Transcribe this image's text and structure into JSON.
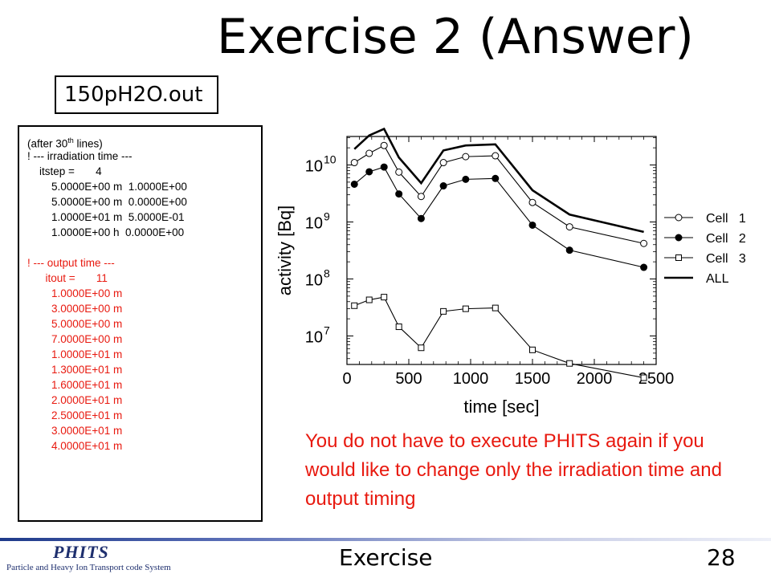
{
  "slide": {
    "title": "Exercise 2 (Answer)",
    "file_label": "150pH2O.out",
    "note": "You do not have to execute PHITS again if you would like to change only the irradiation time and output timing",
    "footer_section": "Exercise",
    "page_number": "28",
    "logo_main": "PHITS",
    "logo_sub": "Particle and Heavy Ion Transport code System"
  },
  "output": {
    "header_pre": "(after 30",
    "header_sup": "th",
    "header_post": " lines)",
    "irradiation_lines": [
      "! --- irradiation time ---",
      "    itstep =       4",
      "        5.0000E+00 m  1.0000E+00",
      "        5.0000E+00 m  0.0000E+00",
      "        1.0000E+01 m  5.0000E-01",
      "        1.0000E+00 h  0.0000E+00"
    ],
    "output_lines": [
      "! --- output time ---",
      "      itout =       11",
      "        1.0000E+00 m",
      "        3.0000E+00 m",
      "        5.0000E+00 m",
      "        7.0000E+00 m",
      "        1.0000E+01 m",
      "        1.3000E+01 m",
      "        1.6000E+01 m",
      "        2.0000E+01 m",
      "        2.5000E+01 m",
      "        3.0000E+01 m",
      "        4.0000E+01 m"
    ]
  },
  "colors": {
    "accent_red": "#e8190f",
    "logo_navy": "#1e2f6e"
  },
  "chart_data": {
    "type": "line",
    "xlabel": "time [sec]",
    "ylabel": "activity [Bq]",
    "xlim": [
      0,
      2500
    ],
    "ylim_log10": [
      6.5,
      10.5
    ],
    "y_scale": "log",
    "grid": false,
    "legend_position": "right",
    "x_ticks": [
      "0",
      "500",
      "1000",
      "1500",
      "2000",
      "2500"
    ],
    "x_tick_values": [
      0,
      500,
      1000,
      1500,
      2000,
      2500
    ],
    "y_ticks": [
      {
        "base": "10",
        "exp": "10",
        "value": 10000000000.0
      },
      {
        "base": "10",
        "exp": "9",
        "value": 1000000000.0
      },
      {
        "base": "10",
        "exp": "8",
        "value": 100000000.0
      },
      {
        "base": "10",
        "exp": "7",
        "value": 10000000.0
      }
    ],
    "x": [
      60,
      180,
      300,
      420,
      600,
      780,
      960,
      1200,
      1500,
      1800,
      2400
    ],
    "series": [
      {
        "name": "Cell   1",
        "marker": "open-circle",
        "values": [
          11000000000.0,
          16000000000.0,
          22000000000.0,
          7500000000.0,
          2800000000.0,
          11000000000.0,
          14000000000.0,
          14500000000.0,
          2200000000.0,
          820000000.0,
          420000000.0
        ]
      },
      {
        "name": "Cell   2",
        "marker": "filled-circle",
        "values": [
          4600000000.0,
          7600000000.0,
          9200000000.0,
          3100000000.0,
          1150000000.0,
          4300000000.0,
          5600000000.0,
          5800000000.0,
          880000000.0,
          320000000.0,
          160000000.0
        ]
      },
      {
        "name": "Cell   3",
        "marker": "open-square",
        "values": [
          34000000.0,
          43000000.0,
          48000000.0,
          14500000.0,
          6200000.0,
          27000000.0,
          30000000.0,
          31000000.0,
          5700000.0,
          3300000.0,
          1850000.0
        ]
      },
      {
        "name": "ALL",
        "marker": "none",
        "values": [
          19000000000.0,
          33000000000.0,
          43000000000.0,
          13500000000.0,
          4800000000.0,
          18000000000.0,
          22000000000.0,
          23000000000.0,
          3600000000.0,
          1350000000.0,
          670000000.0
        ]
      }
    ]
  }
}
